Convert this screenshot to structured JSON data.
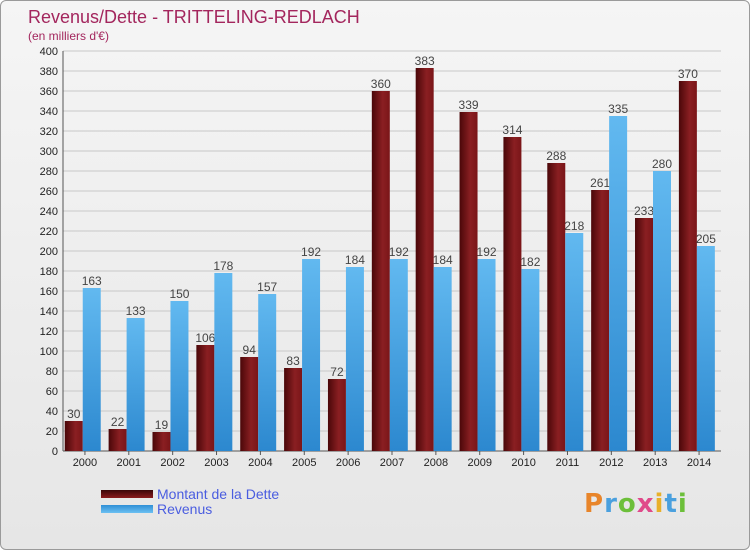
{
  "header": {
    "title": "Revenus/Dette - TRITTELING-REDLACH",
    "subtitle": "(en milliers d'€)"
  },
  "logo": {
    "text": "Proxiti"
  },
  "colors": {
    "debt": "#6e0f12",
    "revenue": "#4aa6e6",
    "title": "#a3265d",
    "legend_text": "#4a5de0"
  },
  "chart_data": {
    "type": "bar",
    "title": "Revenus/Dette - TRITTELING-REDLACH",
    "subtitle": "(en milliers d'€)",
    "categories": [
      "2000",
      "2001",
      "2002",
      "2003",
      "2004",
      "2005",
      "2006",
      "2007",
      "2008",
      "2009",
      "2010",
      "2011",
      "2012",
      "2013",
      "2014"
    ],
    "series": [
      {
        "name": "Montant de la Dette",
        "values": [
          30,
          22,
          19,
          106,
          94,
          83,
          72,
          360,
          383,
          339,
          314,
          288,
          261,
          233,
          370
        ]
      },
      {
        "name": "Revenus",
        "values": [
          163,
          133,
          150,
          178,
          157,
          192,
          184,
          192,
          184,
          192,
          182,
          218,
          335,
          280,
          205
        ]
      }
    ],
    "ylim": [
      0,
      400
    ],
    "yticks": [
      0,
      20,
      40,
      60,
      80,
      100,
      120,
      140,
      160,
      180,
      200,
      220,
      240,
      260,
      280,
      300,
      320,
      340,
      360,
      380,
      400
    ],
    "grid": true,
    "legend": "bottom-left"
  }
}
